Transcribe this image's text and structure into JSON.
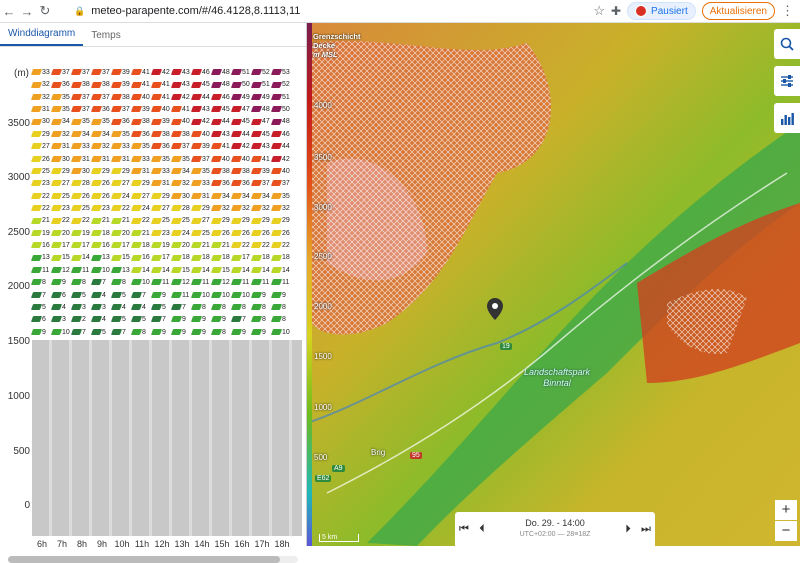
{
  "browser": {
    "url": "meteo-parapente.com/#/46.4128,8.1113,11",
    "profile_label": "Pausiert",
    "update_label": "Aktualisieren"
  },
  "tabs": [
    {
      "label": "Winddiagramm",
      "active": true
    },
    {
      "label": "Temps",
      "active": false
    }
  ],
  "diagram": {
    "unit_label": "(m)",
    "y_ticks": [
      "3500",
      "3000",
      "2500",
      "2000",
      "1500",
      "1000",
      "500",
      "0"
    ],
    "hours": [
      "6h",
      "7h",
      "8h",
      "9h",
      "10h",
      "11h",
      "12h",
      "13h",
      "14h",
      "15h",
      "16h",
      "17h",
      "18h"
    ],
    "rows": [
      [
        33,
        37,
        37,
        37,
        39,
        41,
        42,
        43,
        46,
        48,
        51,
        52,
        53
      ],
      [
        32,
        36,
        38,
        38,
        39,
        41,
        41,
        43,
        45,
        48,
        50,
        51,
        52
      ],
      [
        32,
        35,
        37,
        37,
        38,
        40,
        41,
        42,
        44,
        46,
        49,
        49,
        51
      ],
      [
        31,
        35,
        37,
        36,
        37,
        39,
        40,
        41,
        43,
        45,
        47,
        48,
        50
      ],
      [
        30,
        34,
        35,
        35,
        36,
        38,
        39,
        40,
        42,
        44,
        45,
        47,
        48
      ],
      [
        29,
        32,
        34,
        34,
        35,
        36,
        38,
        38,
        40,
        43,
        44,
        45,
        46
      ],
      [
        27,
        31,
        33,
        32,
        33,
        35,
        36,
        37,
        39,
        41,
        42,
        43,
        44
      ],
      [
        26,
        30,
        31,
        31,
        31,
        33,
        35,
        35,
        37,
        40,
        40,
        41,
        42
      ],
      [
        25,
        29,
        30,
        29,
        29,
        31,
        33,
        34,
        35,
        38,
        38,
        39,
        40
      ],
      [
        23,
        27,
        28,
        26,
        27,
        29,
        31,
        32,
        33,
        36,
        36,
        37,
        37
      ],
      [
        22,
        25,
        26,
        26,
        24,
        27,
        29,
        30,
        31,
        34,
        34,
        34,
        35
      ],
      [
        22,
        23,
        25,
        23,
        22,
        24,
        27,
        28,
        29,
        32,
        32,
        32,
        32
      ],
      [
        21,
        22,
        22,
        21,
        21,
        22,
        25,
        25,
        27,
        29,
        29,
        29,
        29
      ],
      [
        19,
        20,
        19,
        18,
        20,
        21,
        23,
        24,
        25,
        26,
        26,
        26,
        26
      ],
      [
        16,
        17,
        17,
        16,
        17,
        18,
        19,
        20,
        21,
        21,
        22,
        22,
        22
      ],
      [
        13,
        15,
        14,
        13,
        15,
        16,
        17,
        18,
        18,
        18,
        17,
        18,
        18
      ],
      [
        11,
        12,
        11,
        10,
        13,
        14,
        14,
        15,
        14,
        15,
        14,
        14,
        14
      ],
      [
        8,
        9,
        8,
        7,
        8,
        10,
        11,
        12,
        11,
        12,
        11,
        11,
        11
      ],
      [
        7,
        6,
        5,
        4,
        5,
        7,
        9,
        11,
        10,
        10,
        10,
        9,
        9
      ],
      [
        5,
        4,
        3,
        3,
        4,
        4,
        5,
        7,
        8,
        8,
        8,
        8,
        8
      ],
      [
        6,
        3,
        2,
        4,
        5,
        5,
        7,
        9,
        9,
        9,
        7,
        8,
        8
      ],
      [
        9,
        10,
        7,
        5,
        7,
        8,
        9,
        9,
        9,
        8,
        9,
        9,
        10
      ]
    ]
  },
  "map": {
    "title_lines": [
      "Grenzschicht",
      "Decke",
      "m MSL"
    ],
    "scale_labels": [
      "4000",
      "3500",
      "3000",
      "2500",
      "2000",
      "1500",
      "1000",
      "500"
    ],
    "road_19": "19",
    "road_a9": "A9",
    "road_95": "95",
    "road_e62": "E62",
    "town_brig": "Brig",
    "park_label_1": "Landschaftspark",
    "park_label_2": "Binntal",
    "scale_text": "5 km",
    "player": {
      "date": "Do. 29. - 14:00",
      "sub": "UTC+02:00 — 28≡18Z"
    },
    "colors": {
      "high": "#c21a1a",
      "mid": "#e7a72a",
      "low": "#6dbb1d"
    }
  }
}
